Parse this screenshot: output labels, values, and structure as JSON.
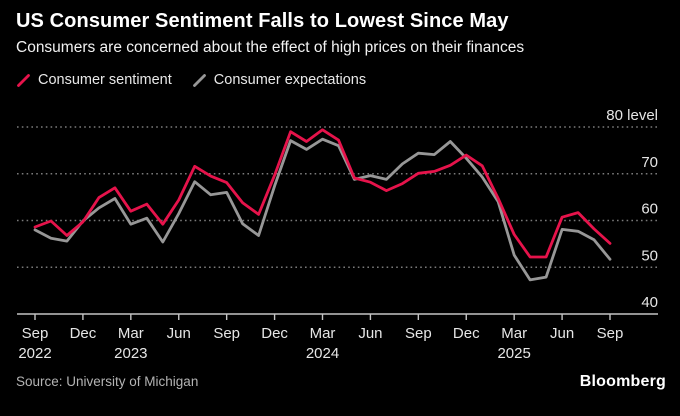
{
  "header": {
    "title": "US Consumer Sentiment Falls to Lowest Since May",
    "subtitle": "Consumers are concerned about the effect of high prices on their finances"
  },
  "legend": {
    "items": [
      {
        "label": "Consumer sentiment",
        "color": "#e6134b",
        "marker": "slash-icon"
      },
      {
        "label": "Consumer expectations",
        "color": "#979797",
        "marker": "slash-icon"
      }
    ]
  },
  "chart_data": {
    "type": "line",
    "title": "US Consumer Sentiment Falls to Lowest Since May",
    "x": [
      "Sep 2022",
      "Oct 2022",
      "Nov 2022",
      "Dec 2022",
      "Jan 2023",
      "Feb 2023",
      "Mar 2023",
      "Apr 2023",
      "May 2023",
      "Jun 2023",
      "Jul 2023",
      "Aug 2023",
      "Sep 2023",
      "Oct 2023",
      "Nov 2023",
      "Dec 2023",
      "Jan 2024",
      "Feb 2024",
      "Mar 2024",
      "Apr 2024",
      "May 2024",
      "Jun 2024",
      "Jul 2024",
      "Aug 2024",
      "Sep 2024",
      "Oct 2024",
      "Nov 2024",
      "Dec 2024",
      "Jan 2025",
      "Feb 2025",
      "Mar 2025",
      "Apr 2025",
      "May 2025",
      "Jun 2025",
      "Jul 2025",
      "Aug 2025",
      "Sep 2025"
    ],
    "series": [
      {
        "name": "Consumer sentiment",
        "color": "#e6134b",
        "values": [
          58.6,
          59.9,
          56.8,
          59.7,
          64.9,
          67.0,
          62.0,
          63.5,
          59.2,
          64.4,
          71.6,
          69.5,
          68.1,
          63.8,
          61.3,
          69.7,
          79.0,
          76.9,
          79.4,
          77.2,
          69.1,
          68.2,
          66.4,
          67.9,
          70.1,
          70.5,
          71.8,
          74.0,
          71.7,
          64.7,
          57.0,
          52.2,
          52.2,
          60.7,
          61.7,
          58.2,
          55.1
        ]
      },
      {
        "name": "Consumer expectations",
        "color": "#979797",
        "values": [
          58.0,
          56.2,
          55.6,
          59.9,
          62.7,
          64.7,
          59.2,
          60.5,
          55.4,
          61.5,
          68.3,
          65.5,
          66.0,
          59.3,
          56.8,
          67.4,
          77.1,
          75.2,
          77.4,
          76.0,
          68.8,
          69.6,
          68.8,
          72.1,
          74.4,
          74.1,
          76.9,
          73.3,
          69.3,
          64.0,
          52.6,
          47.3,
          47.9,
          58.1,
          57.7,
          55.9,
          51.7
        ]
      }
    ],
    "ylim": [
      40,
      80
    ],
    "ylabel": "level",
    "y_ticks": [
      {
        "value": 40,
        "label": "40"
      },
      {
        "value": 50,
        "label": "50"
      },
      {
        "value": 60,
        "label": "60"
      },
      {
        "value": 70,
        "label": "70"
      },
      {
        "value": 80,
        "label": "80 level"
      }
    ],
    "x_tick_every": 3,
    "x_tick_labels": [
      {
        "month": "Sep",
        "year": "2022"
      },
      {
        "month": "Dec"
      },
      {
        "month": "Mar",
        "year": "2023"
      },
      {
        "month": "Jun"
      },
      {
        "month": "Sep"
      },
      {
        "month": "Dec"
      },
      {
        "month": "Mar",
        "year": "2024"
      },
      {
        "month": "Jun"
      },
      {
        "month": "Sep"
      },
      {
        "month": "Dec"
      },
      {
        "month": "Mar",
        "year": "2025"
      },
      {
        "month": "Jun"
      },
      {
        "month": "Sep"
      }
    ],
    "grid": "horizontal-dotted",
    "legend_position": "top-left",
    "colors": {
      "background": "#000000",
      "grid": "#7a7a7a",
      "axis": "#c4c4c4",
      "tick_label": "#e6e6e6"
    }
  },
  "footer": {
    "source": "Source: University of Michigan",
    "brand": "Bloomberg"
  }
}
